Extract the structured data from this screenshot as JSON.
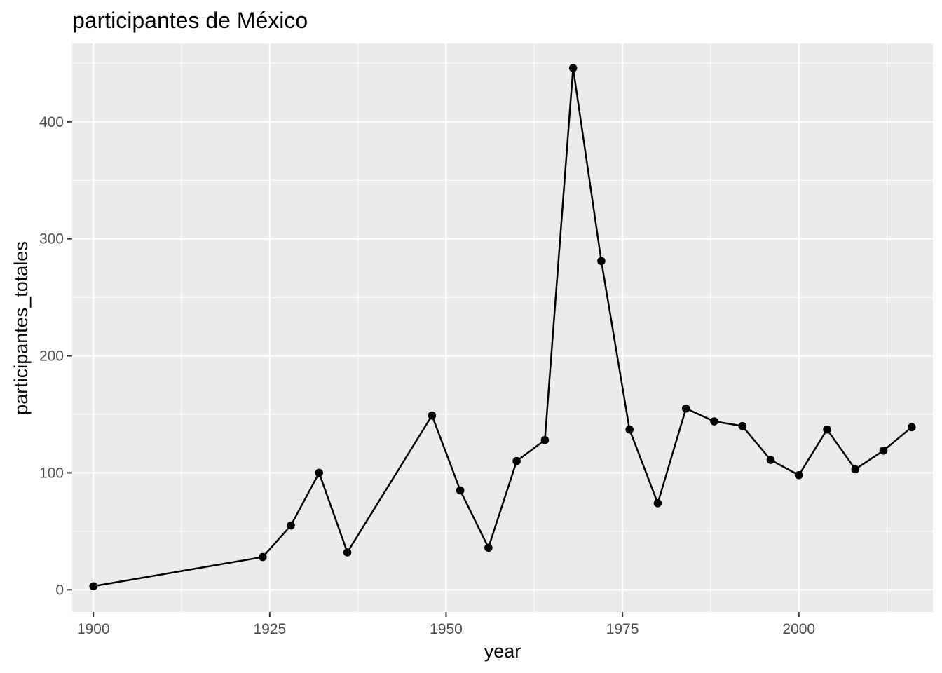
{
  "chart_data": {
    "type": "line",
    "title": "participantes de México",
    "xlabel": "year",
    "ylabel": "participantes_totales",
    "xlim": [
      1897,
      2019
    ],
    "ylim": [
      -19,
      467
    ],
    "x_ticks": [
      1900,
      1925,
      1950,
      1975,
      2000
    ],
    "y_ticks": [
      0,
      100,
      200,
      300,
      400
    ],
    "grid": true,
    "panel_background": "#ebebeb",
    "line_color": "#000000",
    "series": [
      {
        "x": [
          1900,
          1924,
          1928,
          1932,
          1936,
          1948,
          1952,
          1956,
          1960,
          1964,
          1968,
          1972,
          1976,
          1980,
          1984,
          1988,
          1992,
          1996,
          2000,
          2004,
          2008,
          2012,
          2016
        ],
        "values": [
          3,
          28,
          55,
          100,
          32,
          149,
          85,
          36,
          110,
          128,
          446,
          281,
          137,
          74,
          155,
          144,
          140,
          111,
          98,
          137,
          103,
          119,
          139
        ]
      }
    ]
  }
}
